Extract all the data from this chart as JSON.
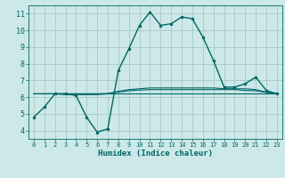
{
  "background_color": "#cde8e8",
  "grid_color": "#aecccc",
  "line_color": "#006666",
  "xlabel": "Humidex (Indice chaleur)",
  "xlim": [
    -0.5,
    23.5
  ],
  "ylim": [
    3.5,
    11.5
  ],
  "yticks": [
    4,
    5,
    6,
    7,
    8,
    9,
    10,
    11
  ],
  "xticks": [
    0,
    1,
    2,
    3,
    4,
    5,
    6,
    7,
    8,
    9,
    10,
    11,
    12,
    13,
    14,
    15,
    16,
    17,
    18,
    19,
    20,
    21,
    22,
    23
  ],
  "series": [
    {
      "x": [
        0,
        1,
        2,
        3,
        4,
        5,
        6,
        7,
        8,
        9,
        10,
        11,
        12,
        13,
        14,
        15,
        16,
        17,
        18,
        19,
        20,
        21,
        22,
        23
      ],
      "y": [
        4.8,
        5.4,
        6.2,
        6.2,
        6.1,
        4.8,
        3.9,
        4.1,
        7.6,
        8.9,
        10.3,
        11.1,
        10.3,
        10.4,
        10.8,
        10.7,
        9.6,
        8.2,
        6.6,
        6.6,
        6.8,
        7.2,
        6.4,
        6.2
      ],
      "marker": "o",
      "markersize": 2.0,
      "linewidth": 1.0,
      "has_marker": true
    },
    {
      "x": [
        0,
        1,
        2,
        3,
        4,
        5,
        6,
        7,
        8,
        9,
        10,
        11,
        12,
        13,
        14,
        15,
        16,
        17,
        18,
        19,
        20,
        21,
        22,
        23
      ],
      "y": [
        6.2,
        6.2,
        6.2,
        6.15,
        6.15,
        6.15,
        6.15,
        6.2,
        6.35,
        6.45,
        6.5,
        6.55,
        6.55,
        6.55,
        6.55,
        6.55,
        6.55,
        6.55,
        6.5,
        6.5,
        6.5,
        6.45,
        6.3,
        6.2
      ],
      "marker": null,
      "markersize": 0,
      "linewidth": 0.8,
      "has_marker": false
    },
    {
      "x": [
        0,
        1,
        2,
        3,
        4,
        5,
        6,
        7,
        8,
        9,
        10,
        11,
        12,
        13,
        14,
        15,
        16,
        17,
        18,
        19,
        20,
        21,
        22,
        23
      ],
      "y": [
        6.2,
        6.2,
        6.2,
        6.2,
        6.2,
        6.2,
        6.2,
        6.22,
        6.3,
        6.38,
        6.42,
        6.45,
        6.45,
        6.45,
        6.45,
        6.45,
        6.45,
        6.45,
        6.45,
        6.45,
        6.4,
        6.38,
        6.28,
        6.2
      ],
      "marker": null,
      "markersize": 0,
      "linewidth": 0.8,
      "has_marker": false
    },
    {
      "x": [
        0,
        1,
        2,
        3,
        4,
        5,
        6,
        7,
        8,
        9,
        10,
        11,
        12,
        13,
        14,
        15,
        16,
        17,
        18,
        19,
        20,
        21,
        22,
        23
      ],
      "y": [
        6.2,
        6.2,
        6.2,
        6.2,
        6.2,
        6.2,
        6.2,
        6.2,
        6.2,
        6.2,
        6.2,
        6.2,
        6.2,
        6.2,
        6.2,
        6.2,
        6.2,
        6.2,
        6.2,
        6.2,
        6.2,
        6.2,
        6.2,
        6.2
      ],
      "marker": null,
      "markersize": 0,
      "linewidth": 0.8,
      "has_marker": false
    }
  ]
}
